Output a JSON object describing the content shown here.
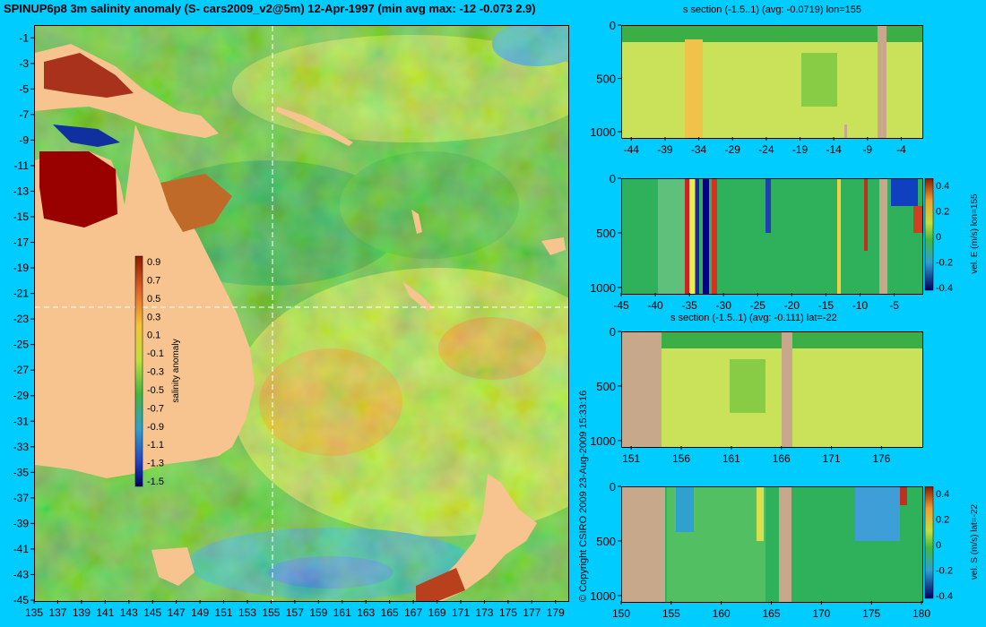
{
  "title": "SPINUP6p8 3m salinity anomaly (S- cars2009_v2@5m) 12-Apr-1997 (min avg max: -12 -0.073 2.9)",
  "copyright": "© Copyright CSIRO 2009   23-Aug-2009 15:33:16",
  "colors": {
    "background": "#00ccff",
    "land": "#f7c48f",
    "seabed": "#c8a88a",
    "ocean_base": "#7fc84a"
  },
  "chart_data": [
    {
      "type": "heatmap",
      "id": "map",
      "x_ticks": [
        "135",
        "137",
        "139",
        "141",
        "143",
        "145",
        "147",
        "149",
        "151",
        "153",
        "155",
        "157",
        "159",
        "161",
        "163",
        "165",
        "167",
        "169",
        "171",
        "173",
        "175",
        "177",
        "179"
      ],
      "y_ticks": [
        "-1",
        "-3",
        "-5",
        "-7",
        "-9",
        "-11",
        "-13",
        "-15",
        "-17",
        "-19",
        "-21",
        "-23",
        "-25",
        "-27",
        "-29",
        "-31",
        "-33",
        "-35",
        "-37",
        "-39",
        "-41",
        "-43",
        "-45"
      ],
      "xlim": [
        135,
        180
      ],
      "ylim": [
        -45,
        0
      ],
      "section_lon": 155,
      "section_lat": -22,
      "colorbar": {
        "label": "salinity anomaly",
        "ticks": [
          "0.9",
          "0.7",
          "0.5",
          "0.3",
          "0.1",
          "-0.1",
          "-0.3",
          "-0.5",
          "-0.7",
          "-0.9",
          "-1.1",
          "-1.3",
          "-1.5"
        ],
        "range": [
          -1.5,
          0.9
        ]
      }
    },
    {
      "type": "heatmap",
      "id": "s_lon",
      "title": "s section (-1.5..1) (avg: -0.0719) lon=155",
      "x_ticks": [
        "-44",
        "-39",
        "-34",
        "-29",
        "-24",
        "-19",
        "-14",
        "-9",
        "-4"
      ],
      "y_ticks": [
        "0",
        "500",
        "1000"
      ]
    },
    {
      "type": "heatmap",
      "id": "v_lon",
      "x_ticks": [
        "-45",
        "-40",
        "-35",
        "-30",
        "-25",
        "-20",
        "-15",
        "-10",
        "-5"
      ],
      "y_ticks": [
        "0",
        "500",
        "1000"
      ],
      "colorbar": {
        "label": "vel. E (m/s) lon=155",
        "ticks": [
          "0.4",
          "0.2",
          "0",
          "-0.2",
          "-0.4"
        ]
      }
    },
    {
      "type": "heatmap",
      "id": "s_lat",
      "title": "s section (-1.5..1) (avg: -0.111) lat=-22",
      "x_ticks": [
        "151",
        "156",
        "161",
        "166",
        "171",
        "176"
      ],
      "y_ticks": [
        "0",
        "500",
        "1000"
      ]
    },
    {
      "type": "heatmap",
      "id": "v_lat",
      "x_ticks": [
        "150",
        "155",
        "160",
        "165",
        "170",
        "175",
        "180"
      ],
      "y_ticks": [
        "0",
        "500",
        "1000"
      ],
      "colorbar": {
        "label": "vel. S (m/s) lat=-22",
        "ticks": [
          "0.4",
          "0.2",
          "0",
          "-0.2",
          "-0.4"
        ]
      }
    }
  ]
}
